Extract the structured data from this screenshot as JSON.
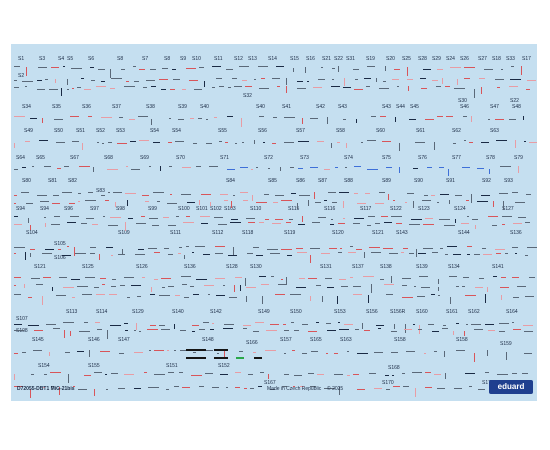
{
  "sheet": {
    "footer_code": "D72055-DBT1 MiG-21bis",
    "footer_made": "Made in Czech Republic",
    "footer_copy": "© 2025",
    "brand": "eduard"
  },
  "labels": [
    [
      "S1",
      18,
      56
    ],
    [
      "S3",
      39,
      56
    ],
    [
      "S4",
      58,
      56
    ],
    [
      "S5",
      67,
      56
    ],
    [
      "S6",
      88,
      56
    ],
    [
      "S8",
      117,
      56
    ],
    [
      "S7",
      142,
      56
    ],
    [
      "S8",
      164,
      56
    ],
    [
      "S9",
      180,
      56
    ],
    [
      "S10",
      192,
      56
    ],
    [
      "S11",
      214,
      56
    ],
    [
      "S12",
      234,
      56
    ],
    [
      "S13",
      248,
      56
    ],
    [
      "S14",
      268,
      56
    ],
    [
      "S15",
      290,
      56
    ],
    [
      "S16",
      306,
      56
    ],
    [
      "S21",
      322,
      56
    ],
    [
      "S22",
      334,
      56
    ],
    [
      "S31",
      346,
      56
    ],
    [
      "S19",
      366,
      56
    ],
    [
      "S20",
      386,
      56
    ],
    [
      "S25",
      402,
      56
    ],
    [
      "S28",
      418,
      56
    ],
    [
      "S29",
      432,
      56
    ],
    [
      "S24",
      446,
      56
    ],
    [
      "S26",
      460,
      56
    ],
    [
      "S27",
      478,
      56
    ],
    [
      "S18",
      492,
      56
    ],
    [
      "S33",
      506,
      56
    ],
    [
      "S17",
      522,
      56
    ],
    [
      "S2",
      18,
      73
    ],
    [
      "S32",
      243,
      93
    ],
    [
      "S30",
      458,
      98
    ],
    [
      "S22",
      510,
      98
    ],
    [
      "S34",
      22,
      104
    ],
    [
      "S35",
      52,
      104
    ],
    [
      "S36",
      82,
      104
    ],
    [
      "S37",
      112,
      104
    ],
    [
      "S38",
      146,
      104
    ],
    [
      "S39",
      178,
      104
    ],
    [
      "S40",
      200,
      104
    ],
    [
      "S40",
      256,
      104
    ],
    [
      "S41",
      282,
      104
    ],
    [
      "S42",
      316,
      104
    ],
    [
      "S43",
      338,
      104
    ],
    [
      "S43",
      382,
      104
    ],
    [
      "S44",
      396,
      104
    ],
    [
      "S45",
      410,
      104
    ],
    [
      "S46",
      460,
      104
    ],
    [
      "S47",
      490,
      104
    ],
    [
      "S48",
      512,
      104
    ],
    [
      "S49",
      24,
      128
    ],
    [
      "S50",
      54,
      128
    ],
    [
      "S51",
      76,
      128
    ],
    [
      "S52",
      96,
      128
    ],
    [
      "S53",
      116,
      128
    ],
    [
      "S54",
      150,
      128
    ],
    [
      "S54",
      172,
      128
    ],
    [
      "S55",
      218,
      128
    ],
    [
      "S56",
      258,
      128
    ],
    [
      "S57",
      296,
      128
    ],
    [
      "S58",
      336,
      128
    ],
    [
      "S60",
      376,
      128
    ],
    [
      "S61",
      416,
      128
    ],
    [
      "S62",
      452,
      128
    ],
    [
      "S63",
      490,
      128
    ],
    [
      "S64",
      16,
      155
    ],
    [
      "S65",
      36,
      155
    ],
    [
      "S67",
      70,
      155
    ],
    [
      "S68",
      104,
      155
    ],
    [
      "S69",
      140,
      155
    ],
    [
      "S70",
      176,
      155
    ],
    [
      "S71",
      220,
      155
    ],
    [
      "S72",
      264,
      155
    ],
    [
      "S73",
      300,
      155
    ],
    [
      "S74",
      344,
      155
    ],
    [
      "S75",
      382,
      155
    ],
    [
      "S76",
      418,
      155
    ],
    [
      "S77",
      452,
      155
    ],
    [
      "S78",
      486,
      155
    ],
    [
      "S79",
      514,
      155
    ],
    [
      "S80",
      22,
      178
    ],
    [
      "S81",
      48,
      178
    ],
    [
      "S82",
      68,
      178
    ],
    [
      "S83",
      96,
      188
    ],
    [
      "S84",
      226,
      178
    ],
    [
      "S85",
      268,
      178
    ],
    [
      "S86",
      296,
      178
    ],
    [
      "S87",
      318,
      178
    ],
    [
      "S88",
      344,
      178
    ],
    [
      "S89",
      382,
      178
    ],
    [
      "S90",
      414,
      178
    ],
    [
      "S91",
      446,
      178
    ],
    [
      "S92",
      482,
      178
    ],
    [
      "S93",
      504,
      178
    ],
    [
      "S94",
      16,
      206
    ],
    [
      "S94",
      40,
      206
    ],
    [
      "S96",
      64,
      206
    ],
    [
      "S97",
      90,
      206
    ],
    [
      "S98",
      116,
      206
    ],
    [
      "S99",
      148,
      206
    ],
    [
      "S100",
      178,
      206
    ],
    [
      "S101",
      196,
      206
    ],
    [
      "S102",
      210,
      206
    ],
    [
      "S103",
      224,
      206
    ],
    [
      "S110",
      250,
      206
    ],
    [
      "S115",
      288,
      206
    ],
    [
      "S116",
      324,
      206
    ],
    [
      "S117",
      360,
      206
    ],
    [
      "S122",
      390,
      206
    ],
    [
      "S123",
      418,
      206
    ],
    [
      "S124",
      454,
      206
    ],
    [
      "S127",
      502,
      206
    ],
    [
      "S104",
      26,
      230
    ],
    [
      "S109",
      118,
      230
    ],
    [
      "S111",
      170,
      230
    ],
    [
      "S112",
      212,
      230
    ],
    [
      "S118",
      242,
      230
    ],
    [
      "S119",
      284,
      230
    ],
    [
      "S120",
      332,
      230
    ],
    [
      "S121",
      372,
      230
    ],
    [
      "S143",
      396,
      230
    ],
    [
      "S144",
      458,
      230
    ],
    [
      "S136",
      510,
      230
    ],
    [
      "S105",
      54,
      241
    ],
    [
      "S106",
      54,
      255
    ],
    [
      "S107",
      16,
      316
    ],
    [
      "S108",
      16,
      328
    ],
    [
      "S121",
      34,
      264
    ],
    [
      "S125",
      82,
      264
    ],
    [
      "S126",
      136,
      264
    ],
    [
      "S136",
      184,
      264
    ],
    [
      "S128",
      226,
      264
    ],
    [
      "S130",
      250,
      264
    ],
    [
      "S131",
      320,
      264
    ],
    [
      "S137",
      352,
      264
    ],
    [
      "S138",
      380,
      264
    ],
    [
      "S139",
      416,
      264
    ],
    [
      "S134",
      448,
      264
    ],
    [
      "S141",
      492,
      264
    ],
    [
      "S113",
      66,
      309
    ],
    [
      "S114",
      96,
      309
    ],
    [
      "S129",
      132,
      309
    ],
    [
      "S140",
      172,
      309
    ],
    [
      "S142",
      210,
      309
    ],
    [
      "S149",
      258,
      309
    ],
    [
      "S150",
      290,
      309
    ],
    [
      "S153",
      334,
      309
    ],
    [
      "S156",
      366,
      309
    ],
    [
      "S156R",
      390,
      309
    ],
    [
      "S160",
      416,
      309
    ],
    [
      "S161",
      446,
      309
    ],
    [
      "S162",
      468,
      309
    ],
    [
      "S164",
      506,
      309
    ],
    [
      "S145",
      32,
      337
    ],
    [
      "S146",
      88,
      337
    ],
    [
      "S147",
      118,
      337
    ],
    [
      "S148",
      202,
      337
    ],
    [
      "S166",
      246,
      340
    ],
    [
      "S157",
      280,
      337
    ],
    [
      "S165",
      310,
      337
    ],
    [
      "S163",
      340,
      337
    ],
    [
      "S158",
      394,
      337
    ],
    [
      "S158",
      456,
      337
    ],
    [
      "S159",
      500,
      341
    ],
    [
      "S154",
      38,
      363
    ],
    [
      "S155",
      88,
      363
    ],
    [
      "S151",
      166,
      363
    ],
    [
      "S152",
      218,
      363
    ],
    [
      "S167",
      264,
      380
    ],
    [
      "S168",
      388,
      365
    ],
    [
      "S170",
      382,
      380
    ],
    [
      "S171",
      482,
      380
    ],
    [
      "S172",
      514,
      380
    ]
  ],
  "colors": {
    "sheet": "#c5dff0",
    "ink": "#1a2a44",
    "grey": "#5a6878",
    "red": "#d8555a",
    "pink": "#e89ca4",
    "blue": "#3e6fd8",
    "black": "#151515",
    "green": "#2aa84a",
    "brand": "#1f3f8f"
  }
}
